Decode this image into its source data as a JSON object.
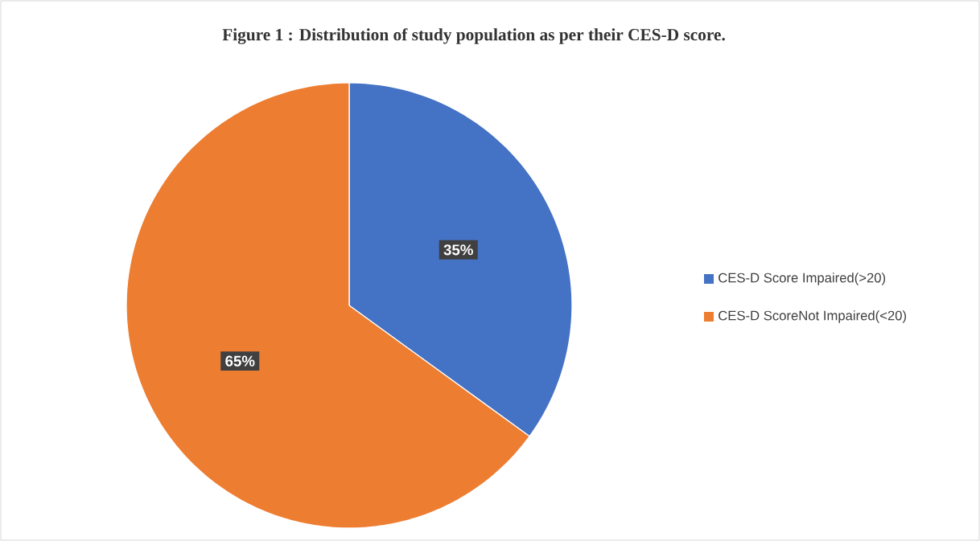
{
  "chart_data": {
    "type": "pie",
    "title": "Figure 1 : Distribution of study population as per their CES-D score.",
    "categories": [
      "CES-D Score Impaired(>20)",
      "CES-D ScoreNot  Impaired(<20)"
    ],
    "values": [
      35,
      65
    ],
    "colors": [
      "#4472c4",
      "#ed7d31"
    ],
    "value_labels": [
      "35%",
      "65%"
    ],
    "legend": "right"
  }
}
